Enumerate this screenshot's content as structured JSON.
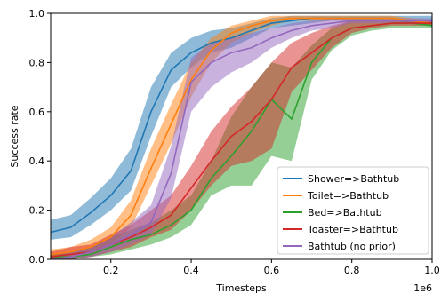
{
  "chart_data": {
    "type": "line",
    "xlabel": "Timesteps",
    "ylabel": "Success rate",
    "x_offset_label": "1e6",
    "xlim": [
      0.05,
      1.0
    ],
    "ylim": [
      0.0,
      1.0
    ],
    "x_ticks": [
      0.2,
      0.4,
      0.6,
      0.8,
      1.0
    ],
    "x_tick_labels": [
      "0.2",
      "0.4",
      "0.6",
      "0.8",
      "1.0"
    ],
    "y_ticks": [
      0.0,
      0.2,
      0.4,
      0.6,
      0.8,
      1.0
    ],
    "y_tick_labels": [
      "0.0",
      "0.2",
      "0.4",
      "0.6",
      "0.8",
      "1.0"
    ],
    "grid": false,
    "legend_position": "lower-right",
    "x": [
      0.05,
      0.1,
      0.15,
      0.2,
      0.25,
      0.3,
      0.35,
      0.4,
      0.45,
      0.5,
      0.55,
      0.6,
      0.65,
      0.7,
      0.75,
      0.8,
      0.85,
      0.9,
      0.95,
      1.0
    ],
    "series": [
      {
        "name": "Shower=>Bathtub",
        "color": "#1f77b4",
        "values": [
          0.11,
          0.13,
          0.19,
          0.26,
          0.36,
          0.6,
          0.77,
          0.84,
          0.88,
          0.9,
          0.93,
          0.96,
          0.97,
          0.98,
          0.98,
          0.98,
          0.98,
          0.98,
          0.97,
          0.97
        ],
        "lower": [
          0.08,
          0.09,
          0.14,
          0.2,
          0.28,
          0.5,
          0.7,
          0.78,
          0.84,
          0.86,
          0.9,
          0.94,
          0.95,
          0.96,
          0.97,
          0.97,
          0.97,
          0.97,
          0.96,
          0.96
        ],
        "upper": [
          0.16,
          0.18,
          0.25,
          0.33,
          0.45,
          0.7,
          0.84,
          0.9,
          0.93,
          0.94,
          0.96,
          0.98,
          0.99,
          0.99,
          0.99,
          0.99,
          0.99,
          0.99,
          0.99,
          0.99
        ]
      },
      {
        "name": "Toilet=>Bathtub",
        "color": "#ff7f0e",
        "values": [
          0.02,
          0.03,
          0.05,
          0.09,
          0.18,
          0.37,
          0.55,
          0.73,
          0.85,
          0.92,
          0.95,
          0.97,
          0.98,
          0.98,
          0.98,
          0.98,
          0.98,
          0.98,
          0.97,
          0.96
        ],
        "lower": [
          0.01,
          0.02,
          0.03,
          0.06,
          0.13,
          0.3,
          0.47,
          0.66,
          0.8,
          0.88,
          0.92,
          0.95,
          0.97,
          0.97,
          0.97,
          0.97,
          0.97,
          0.97,
          0.96,
          0.95
        ],
        "upper": [
          0.04,
          0.05,
          0.08,
          0.13,
          0.24,
          0.45,
          0.63,
          0.8,
          0.9,
          0.95,
          0.97,
          0.99,
          0.99,
          0.99,
          0.99,
          0.99,
          0.99,
          0.99,
          0.98,
          0.97
        ]
      },
      {
        "name": "Bed=>Bathtub",
        "color": "#2ca02c",
        "values": [
          0.01,
          0.01,
          0.02,
          0.05,
          0.08,
          0.1,
          0.14,
          0.2,
          0.33,
          0.42,
          0.52,
          0.65,
          0.57,
          0.8,
          0.9,
          0.94,
          0.95,
          0.96,
          0.96,
          0.95
        ],
        "lower": [
          0.0,
          0.0,
          0.01,
          0.02,
          0.04,
          0.06,
          0.09,
          0.14,
          0.26,
          0.3,
          0.3,
          0.42,
          0.4,
          0.73,
          0.85,
          0.91,
          0.93,
          0.94,
          0.94,
          0.94
        ],
        "upper": [
          0.02,
          0.03,
          0.05,
          0.09,
          0.12,
          0.15,
          0.2,
          0.26,
          0.4,
          0.58,
          0.7,
          0.8,
          0.78,
          0.87,
          0.94,
          0.97,
          0.97,
          0.97,
          0.97,
          0.96
        ]
      },
      {
        "name": "Toaster=>Bathtub",
        "color": "#d62728",
        "values": [
          0.01,
          0.02,
          0.03,
          0.06,
          0.09,
          0.13,
          0.18,
          0.29,
          0.4,
          0.5,
          0.56,
          0.65,
          0.78,
          0.84,
          0.9,
          0.94,
          0.95,
          0.96,
          0.96,
          0.96
        ],
        "lower": [
          0.0,
          0.0,
          0.01,
          0.03,
          0.05,
          0.09,
          0.12,
          0.2,
          0.3,
          0.38,
          0.4,
          0.45,
          0.68,
          0.77,
          0.86,
          0.92,
          0.94,
          0.95,
          0.95,
          0.95
        ],
        "upper": [
          0.03,
          0.05,
          0.06,
          0.1,
          0.14,
          0.2,
          0.26,
          0.38,
          0.52,
          0.62,
          0.7,
          0.8,
          0.88,
          0.92,
          0.95,
          0.97,
          0.97,
          0.97,
          0.97,
          0.97
        ]
      },
      {
        "name": "Bathtub (no prior)",
        "color": "#9467bd",
        "values": [
          0.0,
          0.01,
          0.03,
          0.06,
          0.1,
          0.15,
          0.35,
          0.72,
          0.8,
          0.84,
          0.86,
          0.9,
          0.93,
          0.95,
          0.96,
          0.97,
          0.97,
          0.97,
          0.97,
          0.97
        ],
        "lower": [
          0.0,
          0.0,
          0.01,
          0.03,
          0.06,
          0.1,
          0.25,
          0.6,
          0.7,
          0.76,
          0.8,
          0.86,
          0.9,
          0.93,
          0.94,
          0.96,
          0.96,
          0.96,
          0.96,
          0.96
        ],
        "upper": [
          0.01,
          0.03,
          0.05,
          0.09,
          0.15,
          0.22,
          0.46,
          0.82,
          0.88,
          0.9,
          0.92,
          0.94,
          0.96,
          0.97,
          0.98,
          0.98,
          0.98,
          0.98,
          0.98,
          0.98
        ]
      }
    ]
  }
}
